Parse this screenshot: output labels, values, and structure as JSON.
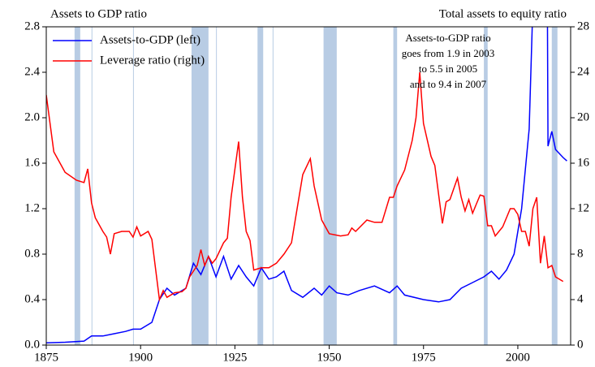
{
  "chart_data": {
    "type": "line",
    "left_title": "Assets to GDP ratio",
    "right_title": "Total assets to equity ratio",
    "annotation": [
      "Assets-to-GDP ratio",
      "goes from 1.9 in 2003",
      "to 5.5 in 2005",
      "and to 9.4 in 2007"
    ],
    "xlim": [
      1875,
      2014
    ],
    "xticks": [
      1875,
      1900,
      1925,
      1950,
      1975,
      2000
    ],
    "ylim": [
      0,
      2.8
    ],
    "yticks": [
      {
        "value": 0,
        "label": "0.0"
      },
      {
        "value": 0.4,
        "label": "0.4"
      },
      {
        "value": 0.8,
        "label": "0.8"
      },
      {
        "value": 1.2,
        "label": "1.2"
      },
      {
        "value": 1.6,
        "label": "1.6"
      },
      {
        "value": 2.0,
        "label": "2.0"
      },
      {
        "value": 2.4,
        "label": "2.4"
      },
      {
        "value": 2.8,
        "label": "2.8"
      }
    ],
    "y2lim": [
      0,
      28
    ],
    "y2ticks": [
      0,
      4,
      8,
      12,
      16,
      20,
      24,
      28
    ],
    "legend": "upper left",
    "shade_color": "#b8cce4",
    "shaded_periods": [
      [
        1882.5,
        1884
      ],
      [
        1887,
        1887.2
      ],
      [
        1898,
        1898.2
      ],
      [
        1913.5,
        1918
      ],
      [
        1920,
        1920.2
      ],
      [
        1931,
        1932.5
      ],
      [
        1935,
        1935.2
      ],
      [
        1948.5,
        1952
      ],
      [
        1967,
        1968
      ],
      [
        1991,
        1992
      ],
      [
        2009,
        2010.5
      ]
    ],
    "series": [
      {
        "name": "Assets-to-GDP (left)",
        "color": "#0000ff",
        "x": [
          1875,
          1880,
          1885,
          1887,
          1890,
          1893,
          1896,
          1898,
          1900,
          1903,
          1905,
          1907,
          1909,
          1912,
          1914,
          1916,
          1918,
          1920,
          1922,
          1924,
          1926,
          1928,
          1930,
          1932,
          1934,
          1936,
          1938,
          1940,
          1943,
          1946,
          1948,
          1950,
          1952,
          1955,
          1958,
          1962,
          1966,
          1968,
          1970,
          1975,
          1979,
          1982,
          1985,
          1988,
          1991,
          1993,
          1995,
          1997,
          1999,
          2001,
          2003,
          2004,
          2005,
          2007,
          2008,
          2009,
          2010,
          2012,
          2013
        ],
        "values": [
          0.02,
          0.025,
          0.035,
          0.08,
          0.08,
          0.1,
          0.12,
          0.14,
          0.14,
          0.2,
          0.4,
          0.5,
          0.44,
          0.5,
          0.72,
          0.62,
          0.78,
          0.6,
          0.78,
          0.58,
          0.7,
          0.6,
          0.52,
          0.68,
          0.58,
          0.6,
          0.65,
          0.48,
          0.42,
          0.5,
          0.44,
          0.52,
          0.46,
          0.44,
          0.48,
          0.52,
          0.46,
          0.52,
          0.44,
          0.4,
          0.38,
          0.4,
          0.5,
          0.55,
          0.6,
          0.65,
          0.58,
          0.66,
          0.8,
          1.2,
          1.9,
          3.0,
          5.5,
          9.4,
          1.75,
          1.88,
          1.72,
          1.65,
          1.62
        ]
      },
      {
        "name": "Leverage ratio (right)",
        "color": "#ff0000",
        "axis": "y2",
        "x": [
          1875,
          1877,
          1880,
          1883,
          1885,
          1886,
          1887,
          1888,
          1890,
          1891,
          1892,
          1893,
          1895,
          1897,
          1898,
          1899,
          1900,
          1902,
          1903,
          1905,
          1906,
          1907,
          1909,
          1911,
          1912,
          1913,
          1915,
          1916,
          1917,
          1918,
          1919,
          1920,
          1922,
          1923,
          1924,
          1926,
          1927,
          1928,
          1929,
          1930,
          1932,
          1934,
          1936,
          1938,
          1940,
          1941,
          1943,
          1945,
          1946,
          1948,
          1950,
          1953,
          1955,
          1956,
          1957,
          1960,
          1962,
          1964,
          1966,
          1967,
          1968,
          1970,
          1972,
          1973,
          1974,
          1975,
          1977,
          1978,
          1980,
          1981,
          1982,
          1984,
          1985,
          1986,
          1987,
          1988,
          1989,
          1990,
          1991,
          1992,
          1993,
          1994,
          1996,
          1998,
          1999,
          2000,
          2001,
          2002,
          2003,
          2004,
          2005,
          2006,
          2007,
          2008,
          2009,
          2010,
          2012
        ],
        "values": [
          22,
          17,
          15.2,
          14.5,
          14.3,
          15.5,
          12.5,
          11.2,
          10,
          9.5,
          8,
          9.8,
          10,
          10,
          9.5,
          10.4,
          9.6,
          10,
          9.3,
          4,
          4.8,
          4.2,
          4.6,
          4.7,
          5,
          6,
          7,
          8.4,
          7,
          7.8,
          7.2,
          7.6,
          9,
          9.4,
          13,
          17.9,
          13,
          10,
          9.2,
          6.6,
          6.8,
          6.8,
          7.2,
          8,
          9,
          11,
          15,
          16.4,
          14,
          11,
          9.8,
          9.6,
          9.7,
          10.3,
          10,
          11,
          10.8,
          10.8,
          13,
          13,
          14,
          15.4,
          18,
          20,
          24,
          19.5,
          16.6,
          15.8,
          10.7,
          12.6,
          12.8,
          14.7,
          13,
          11.8,
          12.8,
          11.6,
          12.4,
          13.2,
          13.1,
          10.5,
          10.5,
          9.6,
          10.4,
          12,
          12,
          11.5,
          10,
          10,
          8.7,
          12,
          13,
          7.2,
          9.6,
          6.8,
          7,
          6,
          5.6
        ]
      }
    ]
  }
}
